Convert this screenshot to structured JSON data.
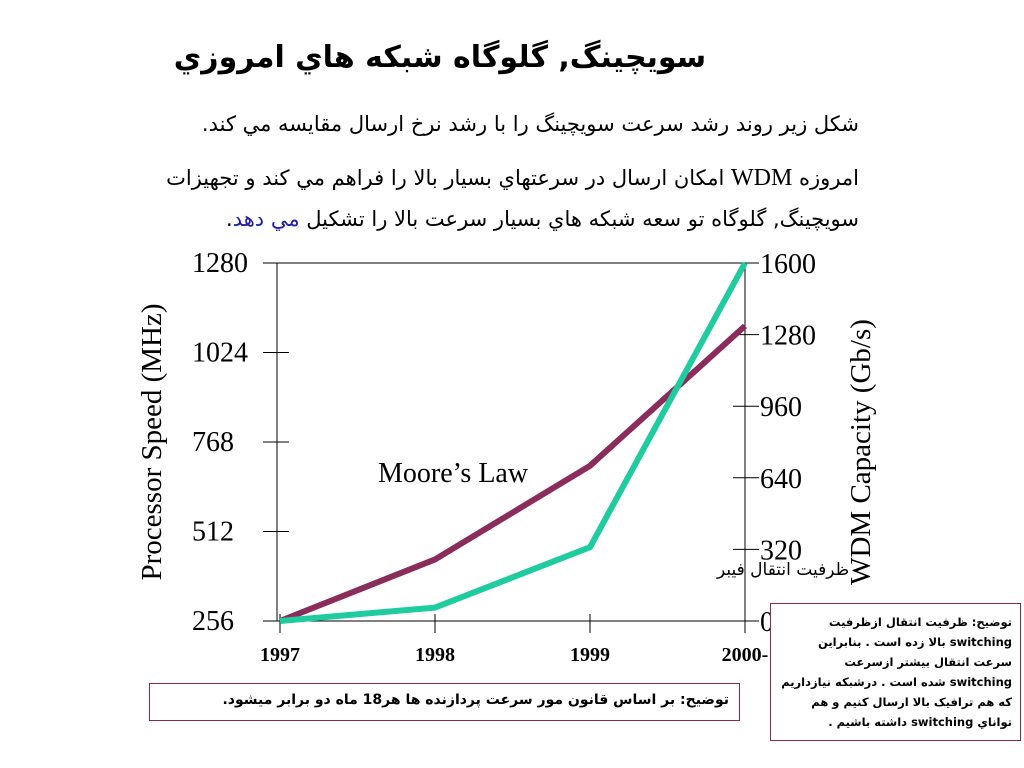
{
  "slide": {
    "title": "سويچينگ, گلوگاه شبکه هاي امروزي",
    "paragraph1": "شکل زير روند رشد سرعت سويچينگ را با رشد نرخ ارسال مقايسه مي کند.",
    "paragraph2_part1": "امروزه",
    "paragraph2_wdm": "WDM",
    "paragraph2_part2": "امکان ارسال در سرعتهاي بسيار بالا را فراهم مي کند و تجهيزات سويچينگ, گلوگاه تو سعه شبکه هاي بسيار سرعت بالا را تشکيل",
    "paragraph2_blue": "مي دهد",
    "paragraph2_end": ".",
    "note_bottom": "توضيح: بر اساس قانون مور سرعت پردازنده ها هر18 ماه دو برابر ميشود.",
    "note_right": "توضيح: ظرفيت انتقال ازظرفيت switching بالا زده است . بنابراين سرعت انتقال بيشتر ازسرعت switching شده است . درشبکه نيازداريم که هم ترافيک بالا ارسال کنيم و هم تواناي switching داشته باشيم ."
  },
  "chart_data": {
    "type": "line",
    "categories": [
      "1997",
      "1998",
      "1999",
      "2000-"
    ],
    "ylabel": "Processor Speed (MHz)",
    "y2label": "WDM Capacity (Gb/s)",
    "y_ticks": [
      "256",
      "512",
      "768",
      "1024",
      "1280"
    ],
    "y2_ticks": [
      "0",
      "320",
      "640",
      "960",
      "1280",
      "1600"
    ],
    "ylim": [
      256,
      1280
    ],
    "y2lim": [
      0,
      1600
    ],
    "series": [
      {
        "annotation": "Moore’s Law",
        "axis": "left",
        "color": "#8b2d5c",
        "values": [
          256,
          432,
          700,
          1100
        ]
      },
      {
        "annotation": "ظرفيت انتقال فيبر",
        "axis": "right",
        "color": "#1fcca0",
        "values": [
          0,
          60,
          330,
          1600
        ]
      }
    ]
  }
}
